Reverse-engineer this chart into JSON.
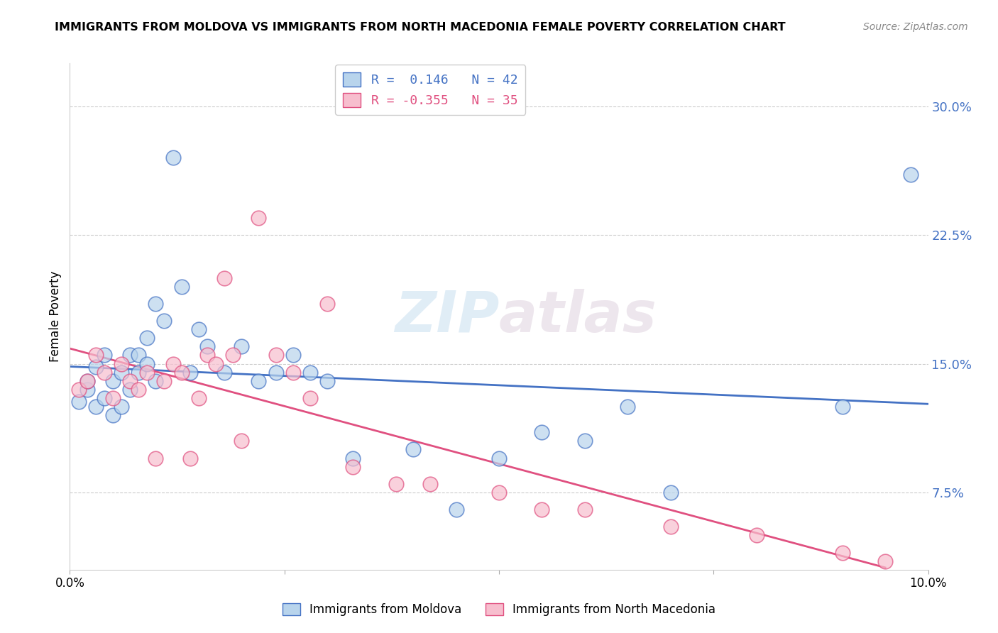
{
  "title": "IMMIGRANTS FROM MOLDOVA VS IMMIGRANTS FROM NORTH MACEDONIA FEMALE POVERTY CORRELATION CHART",
  "source": "Source: ZipAtlas.com",
  "ylabel": "Female Poverty",
  "yticks": [
    "7.5%",
    "15.0%",
    "22.5%",
    "30.0%"
  ],
  "ytick_vals": [
    0.075,
    0.15,
    0.225,
    0.3
  ],
  "xlim": [
    0.0,
    0.1
  ],
  "ylim": [
    0.03,
    0.325
  ],
  "blue_color": "#b8d4ec",
  "pink_color": "#f7bece",
  "blue_line_color": "#4472c4",
  "pink_line_color": "#e05080",
  "moldova_x": [
    0.001,
    0.002,
    0.002,
    0.003,
    0.003,
    0.004,
    0.004,
    0.005,
    0.005,
    0.006,
    0.006,
    0.007,
    0.007,
    0.008,
    0.008,
    0.009,
    0.009,
    0.01,
    0.01,
    0.011,
    0.012,
    0.013,
    0.014,
    0.015,
    0.016,
    0.018,
    0.02,
    0.022,
    0.024,
    0.026,
    0.028,
    0.03,
    0.033,
    0.04,
    0.045,
    0.05,
    0.055,
    0.06,
    0.065,
    0.07,
    0.09,
    0.098
  ],
  "moldova_y": [
    0.128,
    0.135,
    0.14,
    0.148,
    0.125,
    0.13,
    0.155,
    0.14,
    0.12,
    0.145,
    0.125,
    0.155,
    0.135,
    0.145,
    0.155,
    0.15,
    0.165,
    0.14,
    0.185,
    0.175,
    0.27,
    0.195,
    0.145,
    0.17,
    0.16,
    0.145,
    0.16,
    0.14,
    0.145,
    0.155,
    0.145,
    0.14,
    0.095,
    0.1,
    0.065,
    0.095,
    0.11,
    0.105,
    0.125,
    0.075,
    0.125,
    0.26
  ],
  "north_mac_x": [
    0.001,
    0.002,
    0.003,
    0.004,
    0.005,
    0.006,
    0.007,
    0.008,
    0.009,
    0.01,
    0.011,
    0.012,
    0.013,
    0.014,
    0.015,
    0.016,
    0.017,
    0.018,
    0.019,
    0.02,
    0.022,
    0.024,
    0.026,
    0.028,
    0.03,
    0.033,
    0.038,
    0.042,
    0.05,
    0.055,
    0.06,
    0.07,
    0.08,
    0.09,
    0.095
  ],
  "north_mac_y": [
    0.135,
    0.14,
    0.155,
    0.145,
    0.13,
    0.15,
    0.14,
    0.135,
    0.145,
    0.095,
    0.14,
    0.15,
    0.145,
    0.095,
    0.13,
    0.155,
    0.15,
    0.2,
    0.155,
    0.105,
    0.235,
    0.155,
    0.145,
    0.13,
    0.185,
    0.09,
    0.08,
    0.08,
    0.075,
    0.065,
    0.065,
    0.055,
    0.05,
    0.04,
    0.035
  ]
}
